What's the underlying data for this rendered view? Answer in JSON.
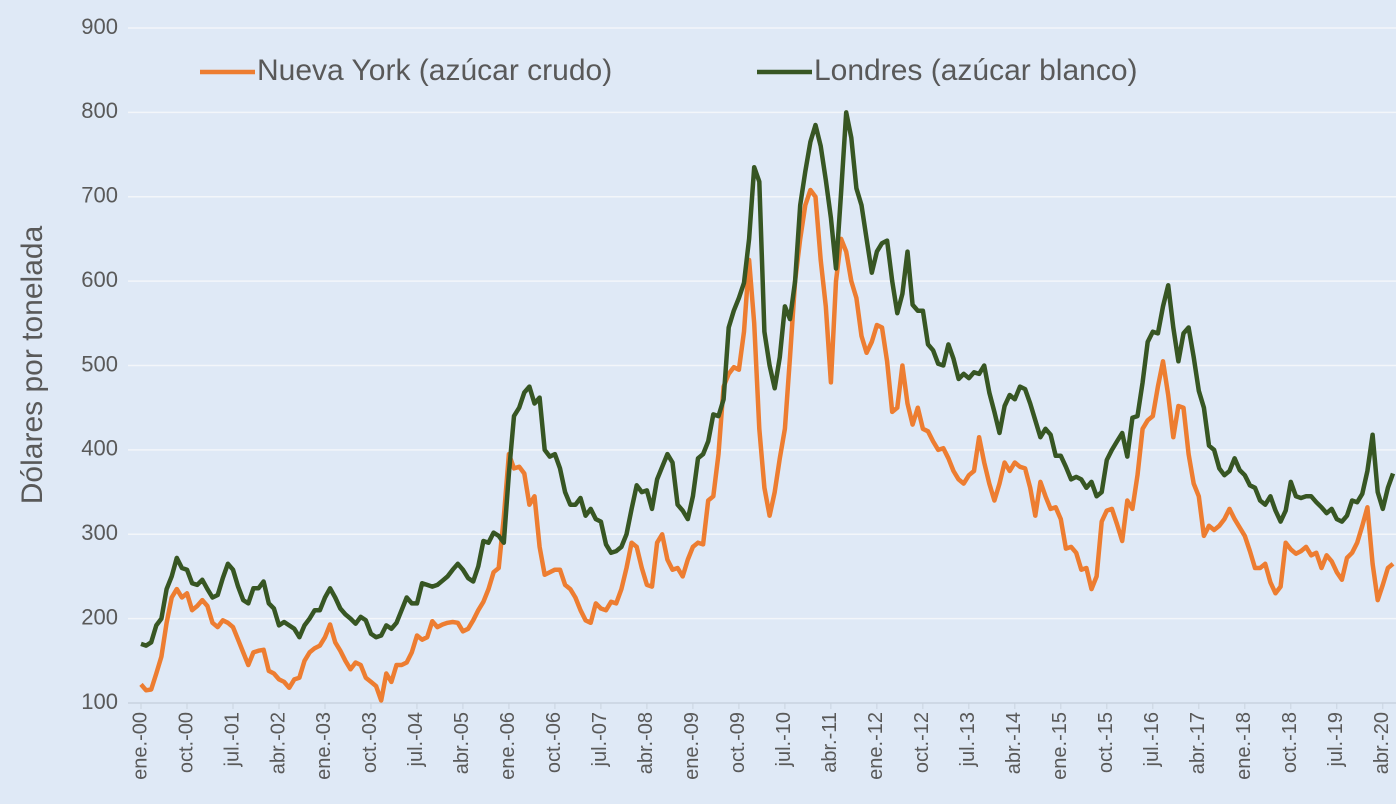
{
  "chart_data": {
    "type": "line",
    "y_label": "Dólares por tonelada",
    "categories": [
      "ene.-00",
      null,
      null,
      null,
      null,
      null,
      null,
      null,
      null,
      "oct.-00",
      null,
      null,
      null,
      null,
      null,
      null,
      null,
      null,
      "jul.-01",
      null,
      null,
      null,
      null,
      null,
      null,
      null,
      null,
      "abr.-02",
      null,
      null,
      null,
      null,
      null,
      null,
      null,
      null,
      "ene.-03",
      null,
      null,
      null,
      null,
      null,
      null,
      null,
      null,
      "oct.-03",
      null,
      null,
      null,
      null,
      null,
      null,
      null,
      null,
      "jul.-04",
      null,
      null,
      null,
      null,
      null,
      null,
      null,
      null,
      "abr.-05",
      null,
      null,
      null,
      null,
      null,
      null,
      null,
      null,
      "ene.-06",
      null,
      null,
      null,
      null,
      null,
      null,
      null,
      null,
      "oct.-06",
      null,
      null,
      null,
      null,
      null,
      null,
      null,
      null,
      "jul.-07",
      null,
      null,
      null,
      null,
      null,
      null,
      null,
      null,
      "abr.-08",
      null,
      null,
      null,
      null,
      null,
      null,
      null,
      null,
      "ene.-09",
      null,
      null,
      null,
      null,
      null,
      null,
      null,
      null,
      "oct.-09",
      null,
      null,
      null,
      null,
      null,
      null,
      null,
      null,
      "jul.-10",
      null,
      null,
      null,
      null,
      null,
      null,
      null,
      null,
      "abr.-11",
      null,
      null,
      null,
      null,
      null,
      null,
      null,
      null,
      "ene.-12",
      null,
      null,
      null,
      null,
      null,
      null,
      null,
      null,
      "oct.-12",
      null,
      null,
      null,
      null,
      null,
      null,
      null,
      null,
      "jul.-13",
      null,
      null,
      null,
      null,
      null,
      null,
      null,
      null,
      "abr.-14",
      null,
      null,
      null,
      null,
      null,
      null,
      null,
      null,
      "ene.-15",
      null,
      null,
      null,
      null,
      null,
      null,
      null,
      null,
      "oct.-15",
      null,
      null,
      null,
      null,
      null,
      null,
      null,
      null,
      "jul.-16",
      null,
      null,
      null,
      null,
      null,
      null,
      null,
      null,
      "abr.-17",
      null,
      null,
      null,
      null,
      null,
      null,
      null,
      null,
      "ene.-18",
      null,
      null,
      null,
      null,
      null,
      null,
      null,
      null,
      "oct.-18",
      null,
      null,
      null,
      null,
      null,
      null,
      null,
      null,
      "jul.-19",
      null,
      null,
      null,
      null,
      null,
      null,
      null,
      null,
      "abr.-20",
      null,
      null
    ],
    "series": [
      {
        "name": "Nueva York (azúcar crudo)",
        "color": "#ed7d31",
        "values": [
          122,
          115,
          116,
          135,
          155,
          195,
          225,
          235,
          225,
          230,
          210,
          215,
          222,
          215,
          195,
          190,
          198,
          195,
          190,
          175,
          160,
          145,
          160,
          162,
          163,
          138,
          135,
          128,
          125,
          118,
          128,
          130,
          150,
          160,
          165,
          168,
          178,
          193,
          172,
          162,
          150,
          140,
          148,
          145,
          130,
          125,
          120,
          103,
          135,
          125,
          145,
          145,
          148,
          160,
          180,
          175,
          178,
          197,
          190,
          193,
          195,
          196,
          195,
          185,
          188,
          198,
          210,
          220,
          235,
          255,
          260,
          320,
          395,
          378,
          380,
          372,
          335,
          345,
          285,
          252,
          255,
          258,
          258,
          240,
          235,
          225,
          210,
          198,
          195,
          218,
          212,
          210,
          220,
          218,
          235,
          260,
          290,
          285,
          260,
          240,
          238,
          290,
          300,
          270,
          258,
          260,
          250,
          270,
          285,
          290,
          288,
          340,
          345,
          395,
          475,
          490,
          498,
          495,
          540,
          625,
          550,
          425,
          355,
          322,
          350,
          390,
          425,
          510,
          600,
          650,
          690,
          708,
          700,
          625,
          570,
          480,
          600,
          650,
          635,
          600,
          580,
          535,
          515,
          528,
          548,
          545,
          505,
          445,
          450,
          500,
          455,
          430,
          450,
          425,
          422,
          410,
          400,
          402,
          390,
          375,
          365,
          360,
          370,
          375,
          415,
          385,
          360,
          340,
          360,
          385,
          375,
          385,
          380,
          378,
          355,
          322,
          362,
          345,
          330,
          332,
          318,
          283,
          285,
          278,
          258,
          260,
          235,
          250,
          315,
          328,
          330,
          312,
          292,
          340,
          330,
          370,
          425,
          435,
          440,
          475,
          505,
          465,
          415,
          452,
          450,
          395,
          360,
          345,
          298,
          310,
          305,
          310,
          318,
          330,
          318,
          308,
          298,
          280,
          260,
          260,
          265,
          243,
          230,
          238,
          290,
          282,
          277,
          280,
          285,
          275,
          278,
          260,
          275,
          268,
          255,
          246,
          272,
          278,
          290,
          310,
          332,
          265,
          222,
          240,
          260,
          265
        ]
      },
      {
        "name": "Londres (azúcar blanco)",
        "color": "#375623",
        "values": [
          170,
          168,
          172,
          192,
          200,
          235,
          250,
          272,
          260,
          258,
          242,
          240,
          246,
          235,
          225,
          228,
          248,
          265,
          258,
          238,
          222,
          218,
          236,
          236,
          244,
          218,
          212,
          192,
          196,
          192,
          188,
          178,
          192,
          200,
          210,
          210,
          225,
          236,
          225,
          212,
          205,
          200,
          194,
          202,
          198,
          182,
          178,
          180,
          192,
          188,
          195,
          210,
          225,
          218,
          218,
          242,
          240,
          238,
          240,
          245,
          250,
          258,
          265,
          258,
          248,
          244,
          262,
          292,
          290,
          302,
          298,
          290,
          372,
          440,
          450,
          468,
          475,
          455,
          462,
          400,
          392,
          395,
          378,
          350,
          335,
          335,
          343,
          322,
          330,
          318,
          315,
          288,
          278,
          280,
          285,
          300,
          330,
          358,
          350,
          352,
          330,
          365,
          380,
          395,
          385,
          335,
          328,
          318,
          345,
          390,
          395,
          410,
          442,
          440,
          460,
          545,
          565,
          580,
          598,
          650,
          735,
          718,
          540,
          500,
          473,
          510,
          570,
          555,
          600,
          690,
          730,
          765,
          785,
          760,
          720,
          675,
          615,
          705,
          800,
          770,
          710,
          690,
          650,
          610,
          635,
          645,
          648,
          600,
          562,
          585,
          635,
          572,
          565,
          565,
          525,
          518,
          502,
          500,
          525,
          508,
          484,
          490,
          485,
          492,
          490,
          500,
          468,
          445,
          420,
          452,
          465,
          460,
          475,
          472,
          455,
          435,
          415,
          425,
          418,
          393,
          393,
          380,
          365,
          368,
          365,
          355,
          362,
          345,
          350,
          388,
          400,
          410,
          420,
          392,
          438,
          440,
          480,
          528,
          540,
          538,
          570,
          595,
          545,
          505,
          538,
          545,
          510,
          470,
          450,
          405,
          400,
          378,
          370,
          375,
          390,
          376,
          370,
          358,
          355,
          340,
          335,
          345,
          328,
          315,
          328,
          362,
          345,
          343,
          345,
          345,
          338,
          332,
          325,
          330,
          318,
          315,
          322,
          340,
          338,
          348,
          375,
          418,
          350,
          330,
          355,
          372
        ]
      }
    ],
    "ylim": [
      100,
      900
    ],
    "yticks": [
      100,
      200,
      300,
      400,
      500,
      600,
      700,
      800,
      900
    ],
    "grid": true
  }
}
